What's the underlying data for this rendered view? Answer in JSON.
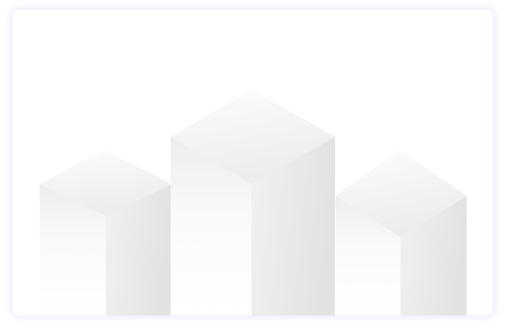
{
  "illustration": {
    "name": "isometric-blocks",
    "colors": {
      "background": "#ffffff",
      "card_shadow": "#dcdef5",
      "top_light": "#fdfdfd",
      "top_dark": "#ececec",
      "front_light": "#ffffff",
      "front_dark": "#ededed",
      "side_light": "#f1f1f1",
      "side_dark": "#e2e2e2"
    }
  }
}
